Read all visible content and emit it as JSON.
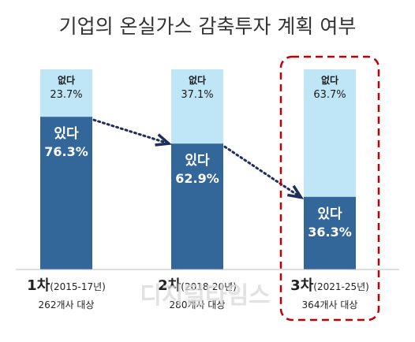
{
  "title": "기업의 온실가스 감축투자 계획 여부",
  "watermark": "디지털타임스",
  "colors": {
    "yes": "#336699",
    "no": "#bfe6f7",
    "arrow": "#1f2f5c",
    "highlight": "#c00000"
  },
  "chart_data": {
    "type": "bar",
    "stacked": true,
    "ylim": [
      0,
      100
    ],
    "categories": [
      {
        "main": "1차",
        "period": "(2015-17년)",
        "note": "262개사 대상"
      },
      {
        "main": "2차",
        "period": "(2018-20년)",
        "note": "280개사 대상"
      },
      {
        "main": "3차",
        "period": "(2021-25년)",
        "note": "364개사 대상"
      }
    ],
    "series": [
      {
        "name": "있다",
        "values": [
          76.3,
          62.9,
          36.3
        ],
        "labels": [
          "76.3%",
          "62.9%",
          "36.3%"
        ]
      },
      {
        "name": "없다",
        "values": [
          23.7,
          37.1,
          63.7
        ],
        "labels": [
          "23.7%",
          "37.1%",
          "63.7%"
        ]
      }
    ],
    "highlighted_category": 2,
    "trend_arrows": true
  }
}
